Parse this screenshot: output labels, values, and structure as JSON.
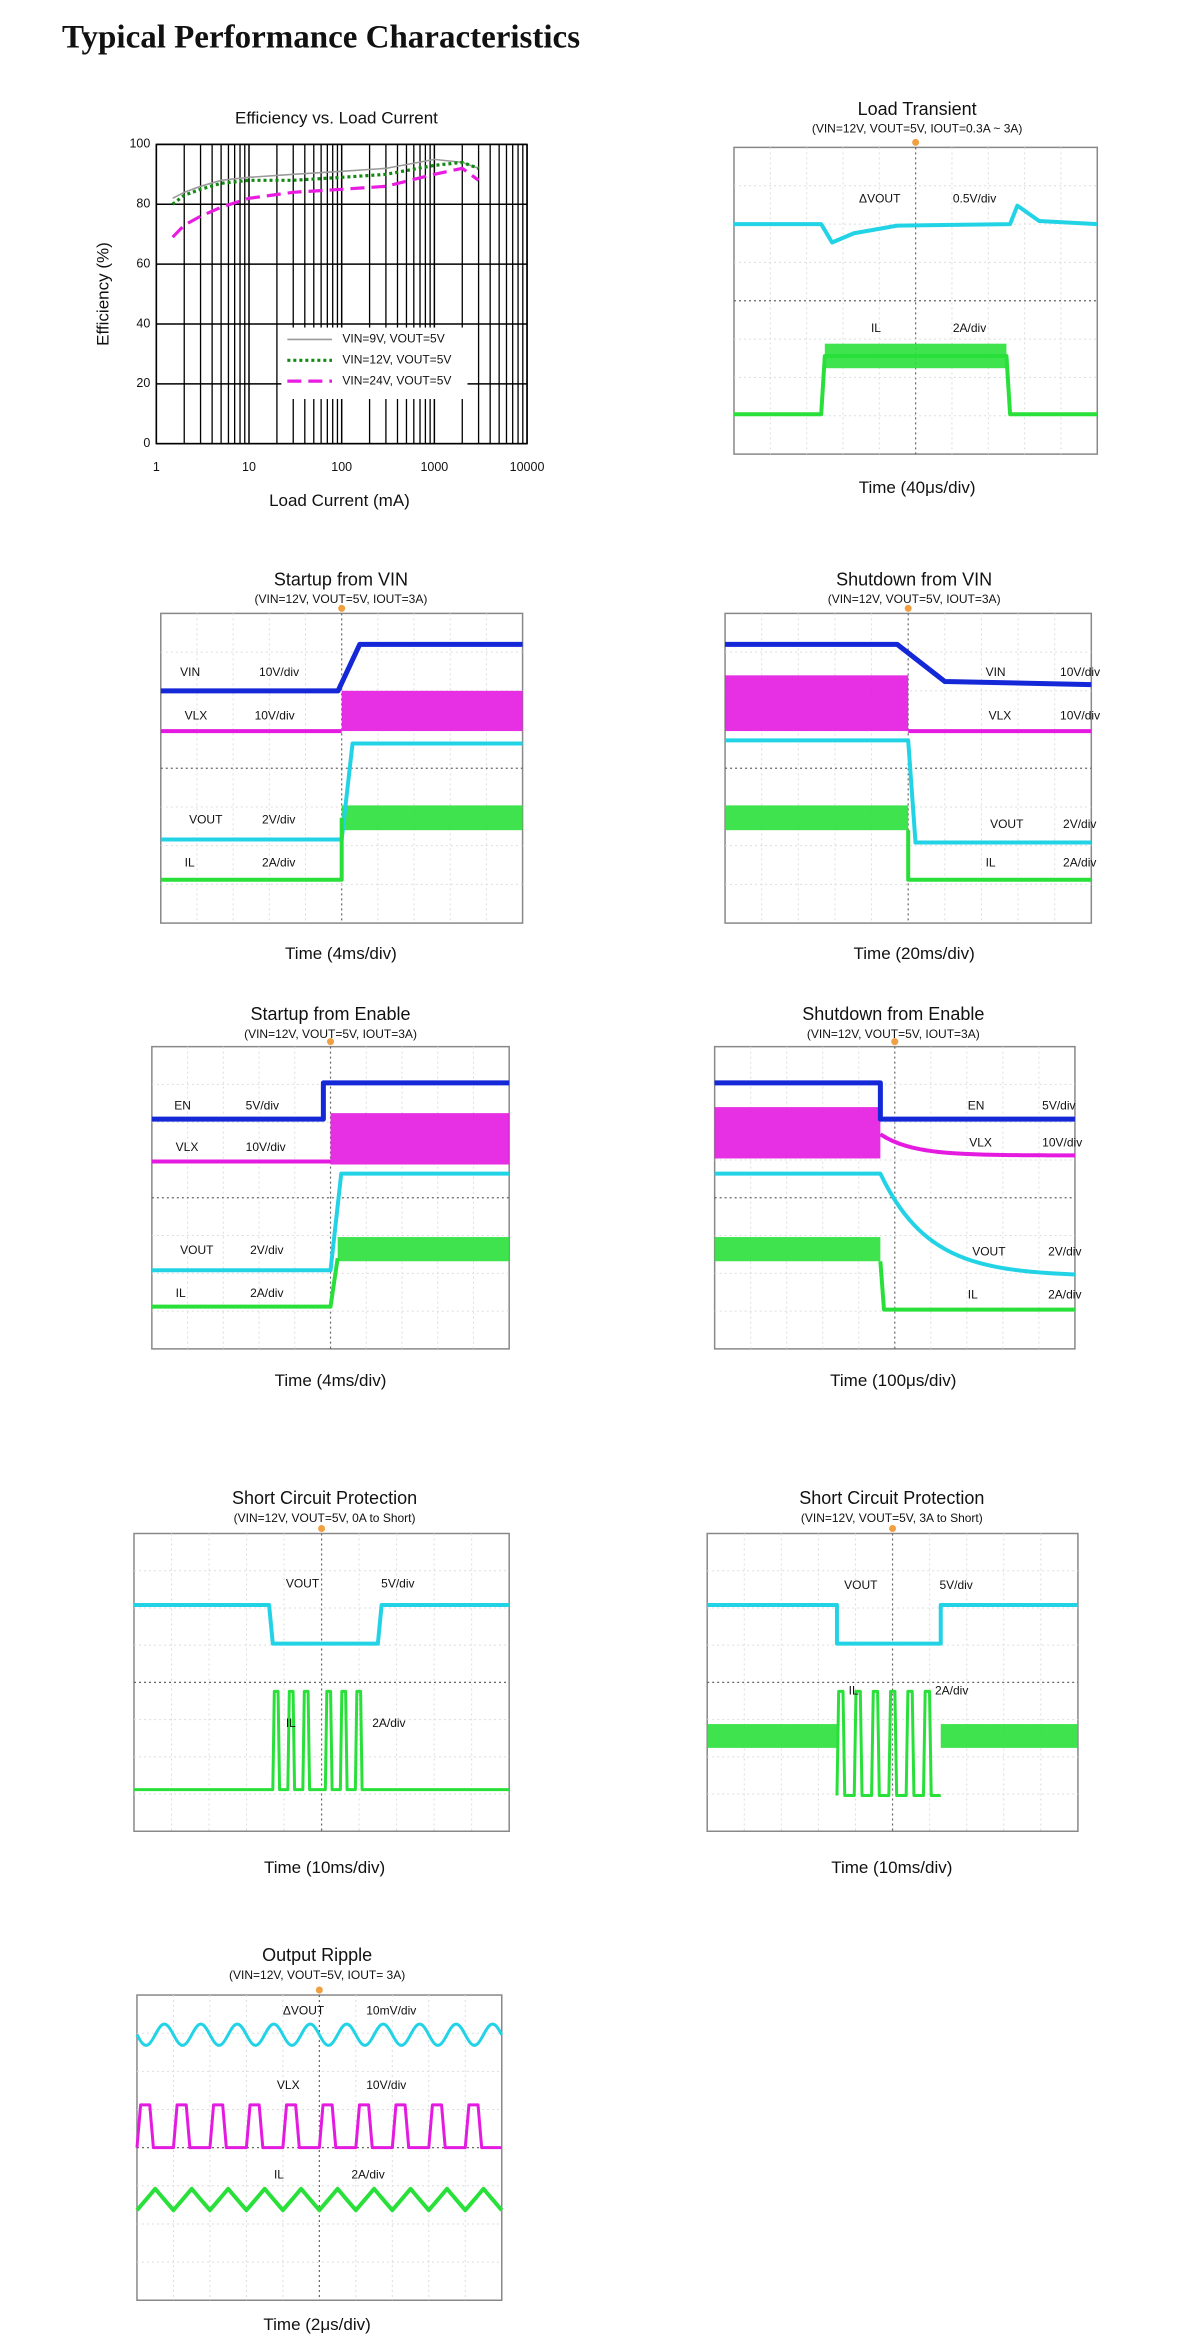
{
  "header": {
    "title": "Typical Performance Characteristics"
  },
  "chart_data": {
    "type": "line",
    "title": "Efficiency vs. Load Current",
    "x_label": "Load Current (mA)",
    "y_label": "Efficiency (%)",
    "x": [
      1.5,
      2,
      3,
      5,
      10,
      30,
      100,
      300,
      1000,
      2000,
      3000
    ],
    "xscale": "log",
    "xlim": [
      1,
      10000
    ],
    "xticks": [
      1,
      10,
      100,
      1000,
      10000
    ],
    "ylim": [
      0,
      100
    ],
    "yticks": [
      0,
      20,
      40,
      60,
      80,
      100
    ],
    "grid": true,
    "legend": "lower right",
    "series": [
      {
        "name": "VIN=9V, VOUT=5V",
        "color": "#9a9a9a",
        "style": "solid",
        "values": [
          82,
          84,
          86,
          88,
          89,
          90,
          91,
          92,
          95,
          94,
          92
        ]
      },
      {
        "name": "VIN=12V, VOUT=5V",
        "color": "#128a12",
        "style": "dotted",
        "values": [
          80,
          83,
          85,
          87,
          88,
          88,
          89,
          90,
          93,
          94,
          92
        ]
      },
      {
        "name": "VIN=24V, VOUT=5V",
        "color": "#e81ce0",
        "style": "dashed",
        "values": [
          69,
          73,
          76,
          79,
          82,
          84,
          85,
          86,
          90,
          92,
          88
        ]
      }
    ]
  },
  "scope_plots": [
    {
      "title": "Load Transient",
      "subtitle": "(VIN=12V, VOUT=5V, IOUT=0.3A ~ 3A)",
      "time": "Time (40μs/div)",
      "channels": [
        {
          "name": "ΔVOUT",
          "scale": "0.5V/div"
        },
        {
          "name": "IL",
          "scale": "2A/div"
        }
      ]
    },
    {
      "title": "Startup from VIN",
      "subtitle": "(VIN=12V, VOUT=5V, IOUT=3A)",
      "time": "Time (4ms/div)",
      "channels": [
        {
          "name": "VIN",
          "scale": "10V/div"
        },
        {
          "name": "VLX",
          "scale": "10V/div"
        },
        {
          "name": "VOUT",
          "scale": "2V/div"
        },
        {
          "name": "IL",
          "scale": "2A/div"
        }
      ]
    },
    {
      "title": "Shutdown from VIN",
      "subtitle": "(VIN=12V, VOUT=5V, IOUT=3A)",
      "time": "Time (20ms/div)",
      "channels": [
        {
          "name": "VIN",
          "scale": "10V/div"
        },
        {
          "name": "VLX",
          "scale": "10V/div"
        },
        {
          "name": "VOUT",
          "scale": "2V/div"
        },
        {
          "name": "IL",
          "scale": "2A/div"
        }
      ]
    },
    {
      "title": "Startup from Enable",
      "subtitle": "(VIN=12V, VOUT=5V, IOUT=3A)",
      "time": "Time (4ms/div)",
      "channels": [
        {
          "name": "EN",
          "scale": "5V/div"
        },
        {
          "name": "VLX",
          "scale": "10V/div"
        },
        {
          "name": "VOUT",
          "scale": "2V/div"
        },
        {
          "name": "IL",
          "scale": "2A/div"
        }
      ]
    },
    {
      "title": "Shutdown from Enable",
      "subtitle": "(VIN=12V, VOUT=5V, IOUT=3A)",
      "time": "Time (100μs/div)",
      "channels": [
        {
          "name": "EN",
          "scale": "5V/div"
        },
        {
          "name": "VLX",
          "scale": "10V/div"
        },
        {
          "name": "VOUT",
          "scale": "2V/div"
        },
        {
          "name": "IL",
          "scale": "2A/div"
        }
      ]
    },
    {
      "title": "Short Circuit Protection",
      "subtitle": "(VIN=12V, VOUT=5V,  0A to Short)",
      "time": "Time (10ms/div)",
      "channels": [
        {
          "name": "VOUT",
          "scale": "5V/div"
        },
        {
          "name": "IL",
          "scale": "2A/div"
        }
      ]
    },
    {
      "title": "Short Circuit Protection",
      "subtitle": "(VIN=12V, VOUT=5V,  3A to Short)",
      "time": "Time (10ms/div)",
      "channels": [
        {
          "name": "VOUT",
          "scale": "5V/div"
        },
        {
          "name": "IL",
          "scale": "2A/div"
        }
      ]
    },
    {
      "title": "Output Ripple",
      "subtitle": "(VIN=12V, VOUT=5V, IOUT= 3A)",
      "time": "Time (2μs/div)",
      "channels": [
        {
          "name": "ΔVOUT",
          "scale": "10mV/div"
        },
        {
          "name": "VLX",
          "scale": "10V/div"
        },
        {
          "name": "IL",
          "scale": "2A/div"
        }
      ]
    }
  ]
}
